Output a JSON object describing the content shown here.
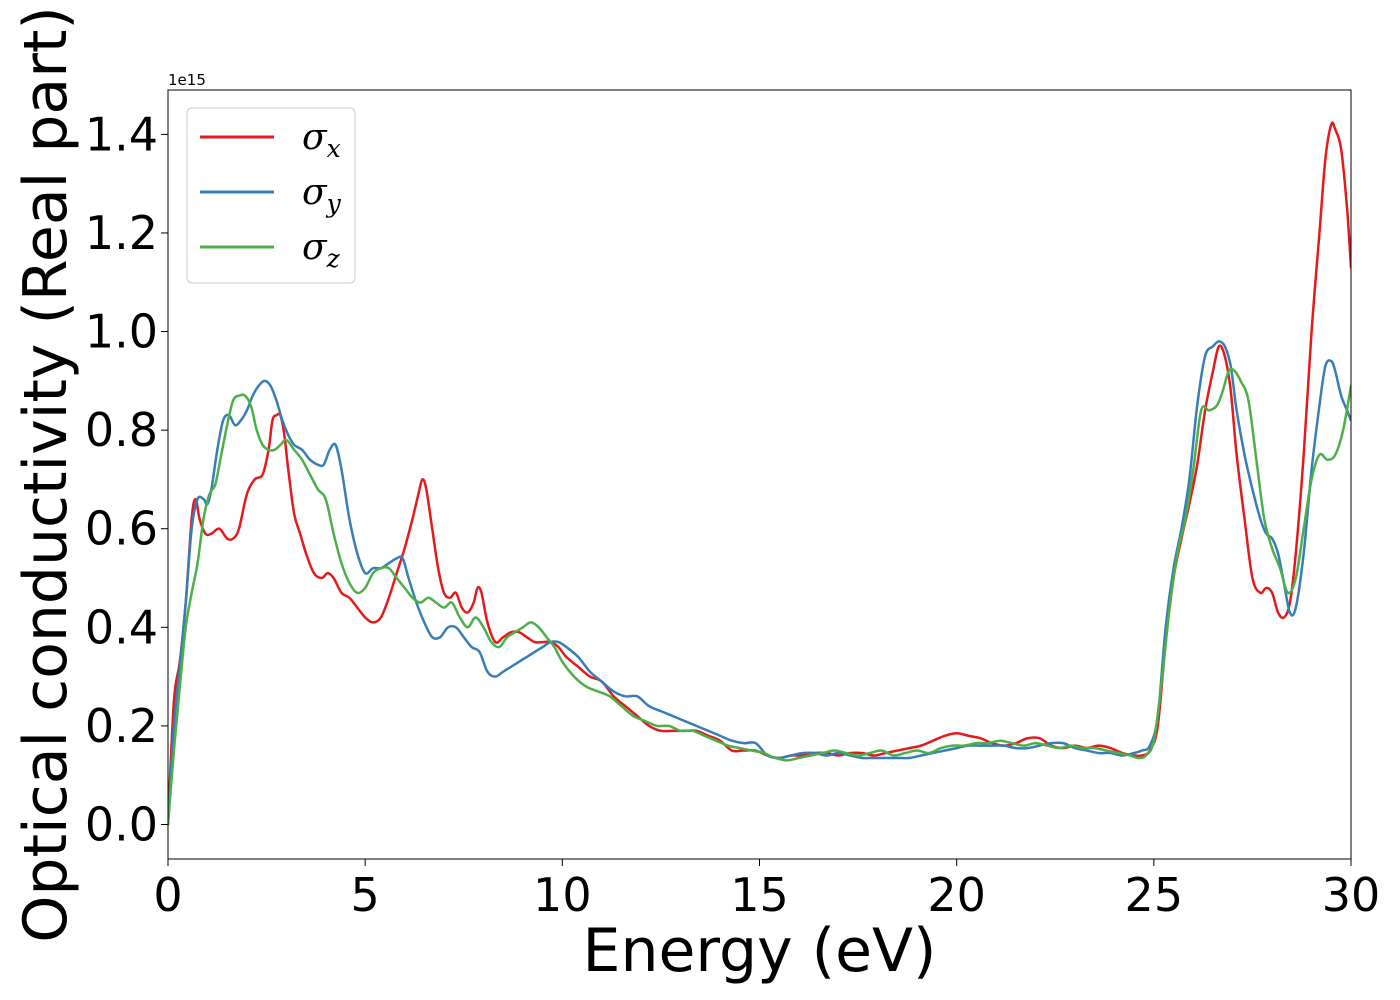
{
  "chart_data": {
    "type": "line",
    "title": "",
    "xlabel": "Energy (eV)",
    "ylabel": "Optical conductivity (Real part)",
    "y_offset_label": "1e15",
    "xlim": [
      0,
      30
    ],
    "ylim": [
      -0.07,
      1.49
    ],
    "xticks": [
      0,
      5,
      10,
      15,
      20,
      25,
      30
    ],
    "xtick_labels": [
      "0",
      "5",
      "10",
      "15",
      "20",
      "25",
      "30"
    ],
    "yticks": [
      0.0,
      0.2,
      0.4,
      0.6,
      0.8,
      1.0,
      1.2,
      1.4
    ],
    "ytick_labels": [
      "0.0",
      "0.2",
      "0.4",
      "0.6",
      "0.8",
      "1.0",
      "1.2",
      "1.4"
    ],
    "grid": false,
    "legend_position": "top-left",
    "series": [
      {
        "name": "σx",
        "symbol": "σ",
        "subscript": "x",
        "color": "#e41a1c",
        "x": [
          0,
          0.15,
          0.3,
          0.45,
          0.6,
          0.7,
          0.8,
          0.95,
          1.1,
          1.3,
          1.5,
          1.65,
          1.8,
          2.0,
          2.2,
          2.4,
          2.55,
          2.65,
          2.75,
          2.85,
          2.95,
          3.05,
          3.2,
          3.35,
          3.5,
          3.7,
          3.9,
          4.05,
          4.2,
          4.4,
          4.6,
          4.8,
          5.0,
          5.2,
          5.4,
          5.6,
          5.8,
          6.0,
          6.2,
          6.35,
          6.45,
          6.55,
          6.7,
          6.85,
          7.0,
          7.15,
          7.3,
          7.45,
          7.6,
          7.75,
          7.85,
          7.95,
          8.1,
          8.3,
          8.5,
          8.7,
          8.9,
          9.1,
          9.3,
          9.5,
          9.7,
          9.9,
          10.1,
          10.4,
          10.7,
          11.0,
          11.3,
          11.6,
          11.9,
          12.2,
          12.5,
          12.8,
          13.1,
          13.4,
          13.7,
          14.0,
          14.3,
          14.6,
          14.9,
          15.2,
          15.5,
          15.8,
          16.1,
          16.4,
          16.7,
          17.0,
          17.3,
          17.6,
          17.9,
          18.2,
          18.5,
          18.8,
          19.1,
          19.4,
          19.7,
          20.0,
          20.3,
          20.6,
          20.9,
          21.2,
          21.5,
          21.8,
          22.1,
          22.4,
          22.7,
          23.0,
          23.3,
          23.6,
          23.9,
          24.2,
          24.5,
          24.7,
          24.9,
          25.1,
          25.3,
          25.5,
          25.7,
          25.9,
          26.1,
          26.3,
          26.5,
          26.65,
          26.8,
          26.95,
          27.1,
          27.3,
          27.5,
          27.7,
          27.85,
          28.0,
          28.15,
          28.3,
          28.45,
          28.6,
          28.8,
          29.0,
          29.2,
          29.35,
          29.5,
          29.6,
          29.75,
          29.9,
          30.0
        ],
        "y": [
          0.0,
          0.25,
          0.33,
          0.45,
          0.62,
          0.66,
          0.62,
          0.59,
          0.59,
          0.6,
          0.58,
          0.58,
          0.6,
          0.67,
          0.7,
          0.71,
          0.76,
          0.82,
          0.83,
          0.83,
          0.79,
          0.72,
          0.63,
          0.59,
          0.55,
          0.51,
          0.5,
          0.51,
          0.5,
          0.47,
          0.46,
          0.44,
          0.42,
          0.41,
          0.42,
          0.46,
          0.51,
          0.56,
          0.62,
          0.67,
          0.7,
          0.68,
          0.6,
          0.52,
          0.47,
          0.46,
          0.47,
          0.44,
          0.43,
          0.45,
          0.48,
          0.47,
          0.41,
          0.37,
          0.38,
          0.39,
          0.39,
          0.38,
          0.37,
          0.37,
          0.37,
          0.36,
          0.34,
          0.32,
          0.3,
          0.29,
          0.26,
          0.24,
          0.22,
          0.2,
          0.19,
          0.19,
          0.19,
          0.19,
          0.18,
          0.17,
          0.15,
          0.15,
          0.15,
          0.14,
          0.135,
          0.14,
          0.14,
          0.145,
          0.145,
          0.14,
          0.145,
          0.145,
          0.14,
          0.145,
          0.15,
          0.155,
          0.16,
          0.17,
          0.18,
          0.185,
          0.18,
          0.175,
          0.165,
          0.16,
          0.165,
          0.175,
          0.175,
          0.16,
          0.155,
          0.16,
          0.155,
          0.16,
          0.155,
          0.145,
          0.14,
          0.14,
          0.15,
          0.2,
          0.37,
          0.5,
          0.58,
          0.65,
          0.73,
          0.84,
          0.92,
          0.97,
          0.95,
          0.88,
          0.75,
          0.62,
          0.5,
          0.47,
          0.48,
          0.47,
          0.43,
          0.42,
          0.45,
          0.55,
          0.75,
          1.0,
          1.2,
          1.35,
          1.42,
          1.41,
          1.37,
          1.25,
          1.13
        ]
      },
      {
        "name": "σy",
        "symbol": "σ",
        "subscript": "y",
        "color": "#377eb8",
        "x": [
          0,
          0.15,
          0.3,
          0.45,
          0.6,
          0.75,
          0.9,
          1.0,
          1.1,
          1.25,
          1.4,
          1.55,
          1.7,
          1.85,
          2.0,
          2.15,
          2.3,
          2.45,
          2.6,
          2.75,
          2.9,
          3.05,
          3.2,
          3.4,
          3.6,
          3.8,
          3.95,
          4.1,
          4.25,
          4.4,
          4.6,
          4.8,
          5.0,
          5.2,
          5.4,
          5.6,
          5.8,
          5.95,
          6.1,
          6.3,
          6.5,
          6.7,
          6.9,
          7.1,
          7.3,
          7.5,
          7.7,
          7.9,
          8.1,
          8.3,
          8.5,
          8.7,
          8.9,
          9.1,
          9.3,
          9.5,
          9.7,
          9.9,
          10.1,
          10.4,
          10.7,
          11.0,
          11.3,
          11.6,
          11.9,
          12.2,
          12.5,
          12.8,
          13.1,
          13.4,
          13.7,
          14.0,
          14.3,
          14.6,
          14.9,
          15.2,
          15.5,
          15.8,
          16.1,
          16.4,
          16.7,
          17.0,
          17.3,
          17.6,
          17.9,
          18.2,
          18.5,
          18.8,
          19.1,
          19.4,
          19.7,
          20.0,
          20.3,
          20.6,
          20.9,
          21.2,
          21.5,
          21.8,
          22.1,
          22.4,
          22.7,
          23.0,
          23.3,
          23.6,
          23.9,
          24.2,
          24.5,
          24.7,
          24.9,
          25.1,
          25.3,
          25.5,
          25.7,
          25.9,
          26.1,
          26.3,
          26.5,
          26.65,
          26.8,
          26.95,
          27.1,
          27.3,
          27.5,
          27.7,
          27.85,
          28.0,
          28.15,
          28.3,
          28.45,
          28.6,
          28.8,
          29.0,
          29.2,
          29.35,
          29.5,
          29.6,
          29.75,
          29.9,
          30.0
        ],
        "y": [
          0.0,
          0.2,
          0.32,
          0.45,
          0.6,
          0.66,
          0.66,
          0.65,
          0.68,
          0.76,
          0.82,
          0.83,
          0.81,
          0.82,
          0.84,
          0.87,
          0.89,
          0.9,
          0.89,
          0.86,
          0.82,
          0.79,
          0.77,
          0.76,
          0.74,
          0.73,
          0.73,
          0.76,
          0.77,
          0.72,
          0.62,
          0.55,
          0.51,
          0.52,
          0.52,
          0.53,
          0.54,
          0.54,
          0.5,
          0.45,
          0.41,
          0.38,
          0.38,
          0.4,
          0.4,
          0.38,
          0.36,
          0.35,
          0.31,
          0.3,
          0.31,
          0.32,
          0.33,
          0.34,
          0.35,
          0.36,
          0.37,
          0.37,
          0.36,
          0.34,
          0.31,
          0.29,
          0.27,
          0.26,
          0.26,
          0.24,
          0.23,
          0.22,
          0.21,
          0.2,
          0.19,
          0.18,
          0.17,
          0.165,
          0.165,
          0.14,
          0.135,
          0.14,
          0.145,
          0.145,
          0.14,
          0.145,
          0.14,
          0.135,
          0.135,
          0.135,
          0.135,
          0.135,
          0.14,
          0.145,
          0.15,
          0.155,
          0.16,
          0.16,
          0.16,
          0.16,
          0.155,
          0.155,
          0.16,
          0.165,
          0.165,
          0.155,
          0.15,
          0.145,
          0.145,
          0.14,
          0.145,
          0.15,
          0.16,
          0.22,
          0.4,
          0.52,
          0.6,
          0.7,
          0.85,
          0.95,
          0.97,
          0.98,
          0.97,
          0.93,
          0.84,
          0.75,
          0.68,
          0.62,
          0.59,
          0.58,
          0.55,
          0.49,
          0.43,
          0.44,
          0.55,
          0.72,
          0.85,
          0.93,
          0.94,
          0.92,
          0.87,
          0.84,
          0.82
        ]
      },
      {
        "name": "σz",
        "symbol": "σ",
        "subscript": "z",
        "color": "#4daf4a",
        "x": [
          0,
          0.15,
          0.3,
          0.45,
          0.6,
          0.75,
          0.9,
          1.05,
          1.2,
          1.35,
          1.5,
          1.65,
          1.8,
          1.95,
          2.1,
          2.25,
          2.4,
          2.55,
          2.7,
          2.85,
          3.0,
          3.2,
          3.4,
          3.6,
          3.8,
          4.0,
          4.2,
          4.4,
          4.6,
          4.8,
          5.0,
          5.2,
          5.4,
          5.6,
          5.8,
          6.0,
          6.2,
          6.4,
          6.6,
          6.8,
          7.0,
          7.2,
          7.4,
          7.6,
          7.8,
          8.0,
          8.2,
          8.4,
          8.6,
          8.8,
          9.0,
          9.2,
          9.4,
          9.6,
          9.8,
          10.0,
          10.3,
          10.6,
          10.9,
          11.2,
          11.5,
          11.8,
          12.1,
          12.4,
          12.7,
          13.0,
          13.3,
          13.6,
          13.9,
          14.2,
          14.5,
          14.8,
          15.1,
          15.4,
          15.7,
          16.0,
          16.3,
          16.6,
          16.9,
          17.2,
          17.5,
          17.8,
          18.1,
          18.4,
          18.7,
          19.0,
          19.3,
          19.6,
          19.9,
          20.2,
          20.5,
          20.8,
          21.1,
          21.4,
          21.7,
          22.0,
          22.3,
          22.6,
          22.9,
          23.2,
          23.5,
          23.8,
          24.1,
          24.4,
          24.6,
          24.8,
          25.0,
          25.2,
          25.4,
          25.6,
          25.8,
          26.0,
          26.2,
          26.4,
          26.6,
          26.75,
          26.9,
          27.05,
          27.2,
          27.4,
          27.6,
          27.8,
          28.0,
          28.2,
          28.4,
          28.6,
          28.8,
          29.0,
          29.2,
          29.4,
          29.6,
          29.8,
          30.0
        ],
        "y": [
          0.0,
          0.15,
          0.28,
          0.4,
          0.47,
          0.53,
          0.62,
          0.67,
          0.69,
          0.75,
          0.81,
          0.86,
          0.87,
          0.87,
          0.85,
          0.8,
          0.77,
          0.76,
          0.76,
          0.77,
          0.78,
          0.76,
          0.74,
          0.71,
          0.68,
          0.66,
          0.59,
          0.53,
          0.49,
          0.47,
          0.48,
          0.51,
          0.52,
          0.52,
          0.5,
          0.48,
          0.46,
          0.45,
          0.46,
          0.45,
          0.44,
          0.45,
          0.42,
          0.4,
          0.42,
          0.4,
          0.37,
          0.36,
          0.38,
          0.39,
          0.4,
          0.41,
          0.4,
          0.38,
          0.36,
          0.33,
          0.3,
          0.28,
          0.27,
          0.26,
          0.24,
          0.22,
          0.21,
          0.2,
          0.2,
          0.19,
          0.19,
          0.18,
          0.17,
          0.16,
          0.155,
          0.15,
          0.145,
          0.135,
          0.13,
          0.135,
          0.14,
          0.145,
          0.15,
          0.145,
          0.14,
          0.145,
          0.15,
          0.14,
          0.145,
          0.15,
          0.145,
          0.155,
          0.16,
          0.16,
          0.165,
          0.165,
          0.17,
          0.165,
          0.16,
          0.165,
          0.16,
          0.155,
          0.16,
          0.155,
          0.155,
          0.15,
          0.145,
          0.14,
          0.135,
          0.14,
          0.17,
          0.29,
          0.44,
          0.55,
          0.62,
          0.72,
          0.84,
          0.84,
          0.85,
          0.88,
          0.92,
          0.92,
          0.9,
          0.86,
          0.74,
          0.62,
          0.56,
          0.52,
          0.47,
          0.5,
          0.6,
          0.7,
          0.75,
          0.74,
          0.75,
          0.8,
          0.89
        ]
      }
    ]
  }
}
